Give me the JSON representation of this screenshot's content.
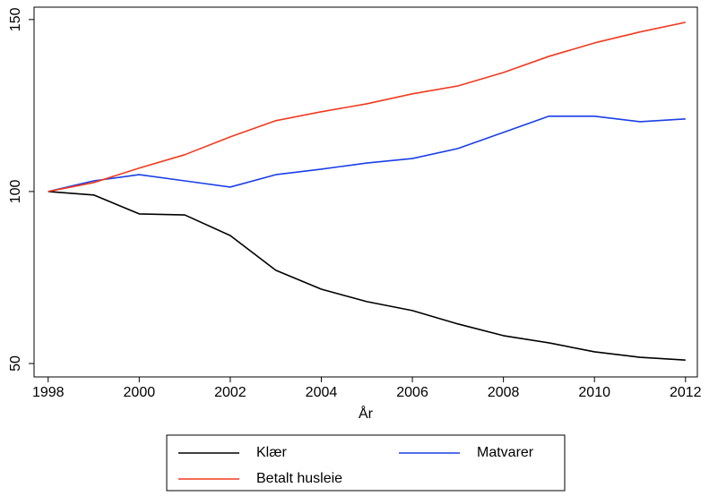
{
  "chart_data": {
    "type": "line",
    "x": [
      1998,
      1999,
      2000,
      2001,
      2002,
      2003,
      2004,
      2005,
      2006,
      2007,
      2008,
      2009,
      2010,
      2011,
      2012
    ],
    "series": [
      {
        "name": "Klær",
        "color": "#000000",
        "values": [
          100,
          99.0,
          93.5,
          93.2,
          87.2,
          77.1,
          71.6,
          68.0,
          65.4,
          61.5,
          58.1,
          56.0,
          53.4,
          51.8,
          51.0
        ]
      },
      {
        "name": "Matvarer",
        "color": "#1a3fe6",
        "values": [
          100,
          103.1,
          104.9,
          103.1,
          101.3,
          104.9,
          106.5,
          108.3,
          109.6,
          112.5,
          117.2,
          121.9,
          121.9,
          120.3,
          121.1
        ]
      },
      {
        "name": "Betalt husleie",
        "color": "#f03a1e",
        "values": [
          100,
          102.6,
          106.8,
          110.7,
          115.9,
          120.6,
          123.2,
          125.5,
          128.4,
          130.7,
          134.6,
          139.3,
          143.2,
          146.4,
          149.2
        ]
      }
    ],
    "xlabel": "År",
    "xlim": [
      1997.69,
      2012.26
    ],
    "xticks": [
      1998,
      2000,
      2002,
      2004,
      2006,
      2008,
      2010,
      2012
    ],
    "ylim": [
      46.1,
      153.6
    ],
    "yticks": [
      50,
      100,
      150
    ],
    "legend": "bottom"
  }
}
